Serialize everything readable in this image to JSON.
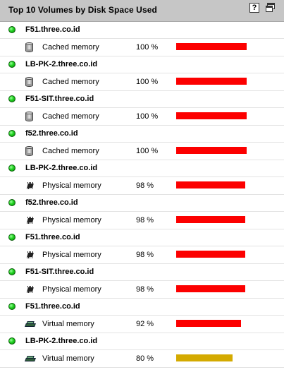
{
  "widget": {
    "title": "Top 10 Volumes by Disk Space Used",
    "help_icon": "question-mark-icon",
    "popout_icon": "popout-window-icon"
  },
  "colors": {
    "bar_critical": "#fc0000",
    "bar_warning": "#d4aa00",
    "status_up": "#1fd11f"
  },
  "rows": [
    {
      "node": "F51.three.co.id",
      "volume": "Cached memory",
      "percent_label": "100 %",
      "percent": 100,
      "icon": "cylinder-disk-icon",
      "level": "critical"
    },
    {
      "node": "LB-PK-2.three.co.id",
      "volume": "Cached memory",
      "percent_label": "100 %",
      "percent": 100,
      "icon": "cylinder-disk-icon",
      "level": "critical"
    },
    {
      "node": "F51-SIT.three.co.id",
      "volume": "Cached memory",
      "percent_label": "100 %",
      "percent": 100,
      "icon": "cylinder-disk-icon",
      "level": "critical"
    },
    {
      "node": "f52.three.co.id",
      "volume": "Cached memory",
      "percent_label": "100 %",
      "percent": 100,
      "icon": "cylinder-disk-icon",
      "level": "critical"
    },
    {
      "node": "LB-PK-2.three.co.id",
      "volume": "Physical memory",
      "percent_label": "98 %",
      "percent": 98,
      "icon": "memory-chip-icon",
      "level": "critical"
    },
    {
      "node": "f52.three.co.id",
      "volume": "Physical memory",
      "percent_label": "98 %",
      "percent": 98,
      "icon": "memory-chip-icon",
      "level": "critical"
    },
    {
      "node": "F51.three.co.id",
      "volume": "Physical memory",
      "percent_label": "98 %",
      "percent": 98,
      "icon": "memory-chip-icon",
      "level": "critical"
    },
    {
      "node": "F51-SIT.three.co.id",
      "volume": "Physical memory",
      "percent_label": "98 %",
      "percent": 98,
      "icon": "memory-chip-icon",
      "level": "critical"
    },
    {
      "node": "F51.three.co.id",
      "volume": "Virtual memory",
      "percent_label": "92 %",
      "percent": 92,
      "icon": "virtual-memory-icon",
      "level": "critical"
    },
    {
      "node": "LB-PK-2.three.co.id",
      "volume": "Virtual memory",
      "percent_label": "80 %",
      "percent": 80,
      "icon": "virtual-memory-icon",
      "level": "warning"
    }
  ]
}
